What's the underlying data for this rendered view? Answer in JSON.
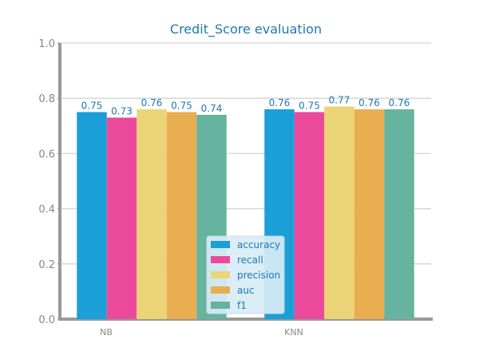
{
  "chart_data": {
    "type": "bar",
    "title": "Credit_Score evaluation",
    "xlabel": "",
    "ylabel": "",
    "categories": [
      "NB",
      "KNN"
    ],
    "ylim": [
      0,
      1.0
    ],
    "yticks": [
      "0.0",
      "0.2",
      "0.4",
      "0.6",
      "0.8",
      "1.0"
    ],
    "grid": true,
    "legend_position": "lower-center",
    "series": [
      {
        "name": "accuracy",
        "color": "#1a9fd8",
        "values": [
          0.75,
          0.76
        ],
        "labels": [
          "0.75",
          "0.76"
        ]
      },
      {
        "name": "recall",
        "color": "#ea4a99",
        "values": [
          0.73,
          0.75
        ],
        "labels": [
          "0.73",
          "0.75"
        ]
      },
      {
        "name": "precision",
        "color": "#ebd477",
        "values": [
          0.76,
          0.77
        ],
        "labels": [
          "0.76",
          "0.77"
        ]
      },
      {
        "name": "auc",
        "color": "#e9ae50",
        "values": [
          0.75,
          0.76
        ],
        "labels": [
          "0.75",
          "0.76"
        ]
      },
      {
        "name": "f1",
        "color": "#66b39f",
        "values": [
          0.74,
          0.76
        ],
        "labels": [
          "0.74",
          "0.76"
        ]
      }
    ],
    "colors": {
      "title": "#1f78b4",
      "value_labels": "#1f78b4",
      "tick_labels": "#888888",
      "axis": "#999999",
      "grid": "#d3d3d3",
      "legend_text": "#1f78b4",
      "legend_background": "#d8ecf6",
      "legend_border": "#c8dce6"
    }
  }
}
